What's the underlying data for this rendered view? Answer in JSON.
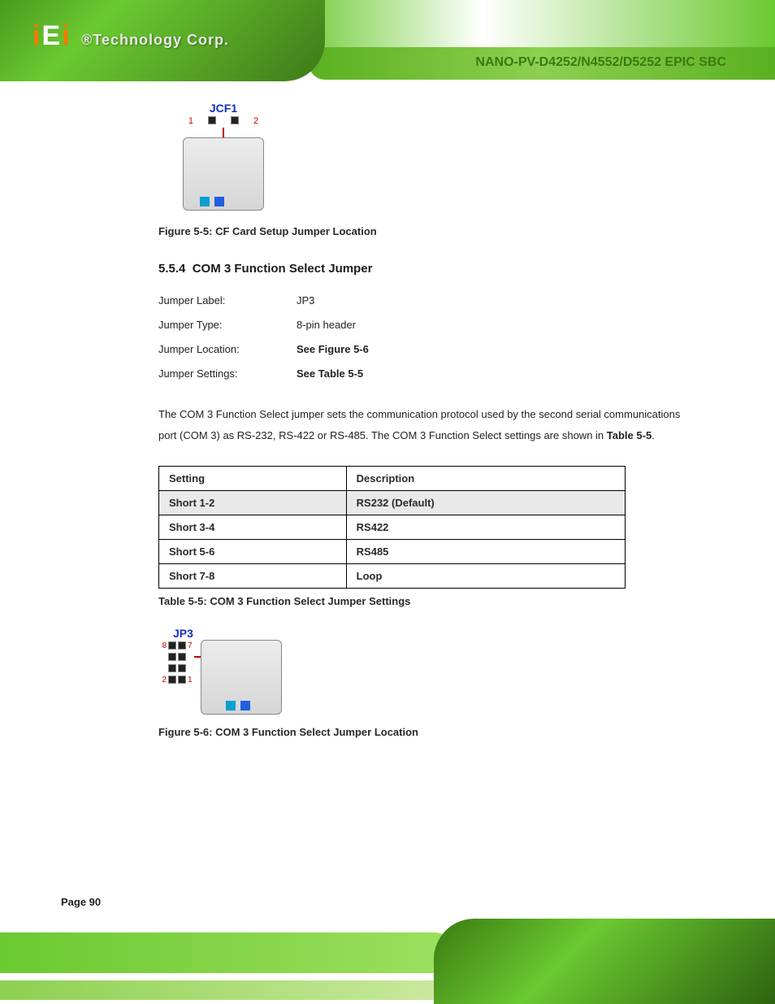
{
  "header": {
    "logo_text": "iEi",
    "tech_label": "®Technology Corp.",
    "product": "NANO-PV-D4252/N4552/D5252 EPIC SBC"
  },
  "fig1": {
    "jumper_label": "JCF1",
    "pin_left": "1",
    "pin_right": "2",
    "caption": "Figure 5-5: CF Card Setup Jumper Location"
  },
  "section": {
    "number": "5.5.4",
    "title": "COM 3 Function Select Jumper"
  },
  "jumper_spec": {
    "label_line": "Jumper Label:",
    "label_value": "JP3",
    "type_line": "Jumper Type:",
    "type_value": "8-pin header",
    "loc_line": "Jumper Location:",
    "loc_value": "See Figure 5-6",
    "set_line": "Jumper Settings:",
    "set_value": "See Table 5-5"
  },
  "paragraph": "The COM 3 Function Select jumper sets the communication protocol used by the second serial communications port (COM 3) as RS-232, RS-422 or RS-485. The COM 3 Function Select settings are shown in ",
  "paragraph_bold_tail": "Table 5-5",
  "paragraph_period": ".",
  "table": {
    "columns": [
      "Setting",
      "Description"
    ],
    "rows": [
      [
        "Short 1-2",
        "RS232"
      ],
      [
        "Short 3-4",
        "RS422"
      ],
      [
        "Short 5-6",
        "RS485"
      ],
      [
        "Short 7-8",
        "Loop"
      ]
    ],
    "default_row_index": 0,
    "default_suffix": " (Default)",
    "caption": "Table 5-5: COM 3 Function Select Jumper Settings"
  },
  "fig2": {
    "jumper_label": "JP3",
    "pins": {
      "top_left": "8",
      "top_right": "7",
      "bottom_left": "2",
      "bottom_right": "1"
    },
    "caption": "Figure 5-6: COM 3 Function Select Jumper Location"
  },
  "page_number": "Page 90",
  "colors": {
    "banner_green_dark": "#3a7a12",
    "banner_green_light": "#6bc930",
    "jumper_blue": "#1030c0",
    "pin_red": "#c00000",
    "table_border": "#000000",
    "shaded_row": "#e9e9e9"
  }
}
